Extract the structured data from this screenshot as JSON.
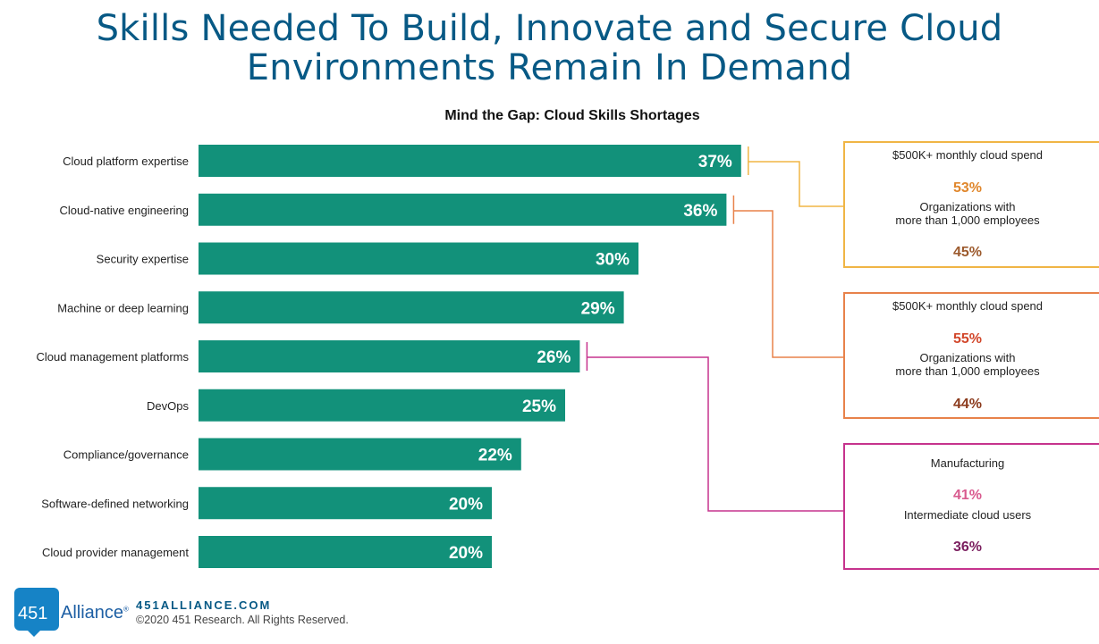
{
  "page": {
    "title_line1": "Skills Needed To Build, Innovate and Secure Cloud",
    "title_line2": "Environments Remain In Demand"
  },
  "footer": {
    "logo_number": "451",
    "logo_word": "Alliance",
    "logo_mark": "®",
    "site": "451ALLIANCE.COM",
    "copyright": "©2020 451 Research. All Rights Reserved."
  },
  "colors": {
    "bar": "#12917a",
    "bar_label": "#ffffff",
    "title": "#075985",
    "callout_spend": "#f0b545",
    "callout_employees": "#e8824a",
    "callout_manufacturing": "#c6338d"
  },
  "chart_data": {
    "type": "bar",
    "orientation": "horizontal",
    "title": "Mind the Gap: Cloud Skills Shortages",
    "xlim": [
      0,
      100
    ],
    "grid": false,
    "categories": [
      "Cloud platform expertise",
      "Cloud-native engineering",
      "Security expertise",
      "Machine or deep learning",
      "Cloud management platforms",
      "DevOps",
      "Compliance/governance",
      "Software-defined networking",
      "Cloud provider management"
    ],
    "values": [
      37,
      36,
      30,
      29,
      26,
      25,
      22,
      20,
      20
    ],
    "value_labels": [
      "37%",
      "36%",
      "30%",
      "29%",
      "26%",
      "25%",
      "22%",
      "20%",
      "20%"
    ],
    "callouts": [
      {
        "category_index": 0,
        "color": "#f0b545",
        "heading": "$500K+ monthly cloud spend",
        "value1": "53%",
        "value1_color": "#e0872c",
        "subheading": "Organizations with more than 1,000 employees",
        "value2": "45%",
        "value2_color": "#9c5a2d"
      },
      {
        "category_index": 1,
        "color": "#e8824a",
        "heading": "$500K+ monthly cloud spend",
        "value1": "55%",
        "value1_color": "#d2472b",
        "subheading": "Organizations with more than 1,000 employees",
        "value2": "44%",
        "value2_color": "#8c3b1d"
      },
      {
        "category_index": 4,
        "color": "#c6338d",
        "heading": "Manufacturing",
        "value1": "41%",
        "value1_color": "#d95b8f",
        "subheading": "Intermediate cloud users",
        "value2": "36%",
        "value2_color": "#7b1f5f"
      }
    ]
  }
}
